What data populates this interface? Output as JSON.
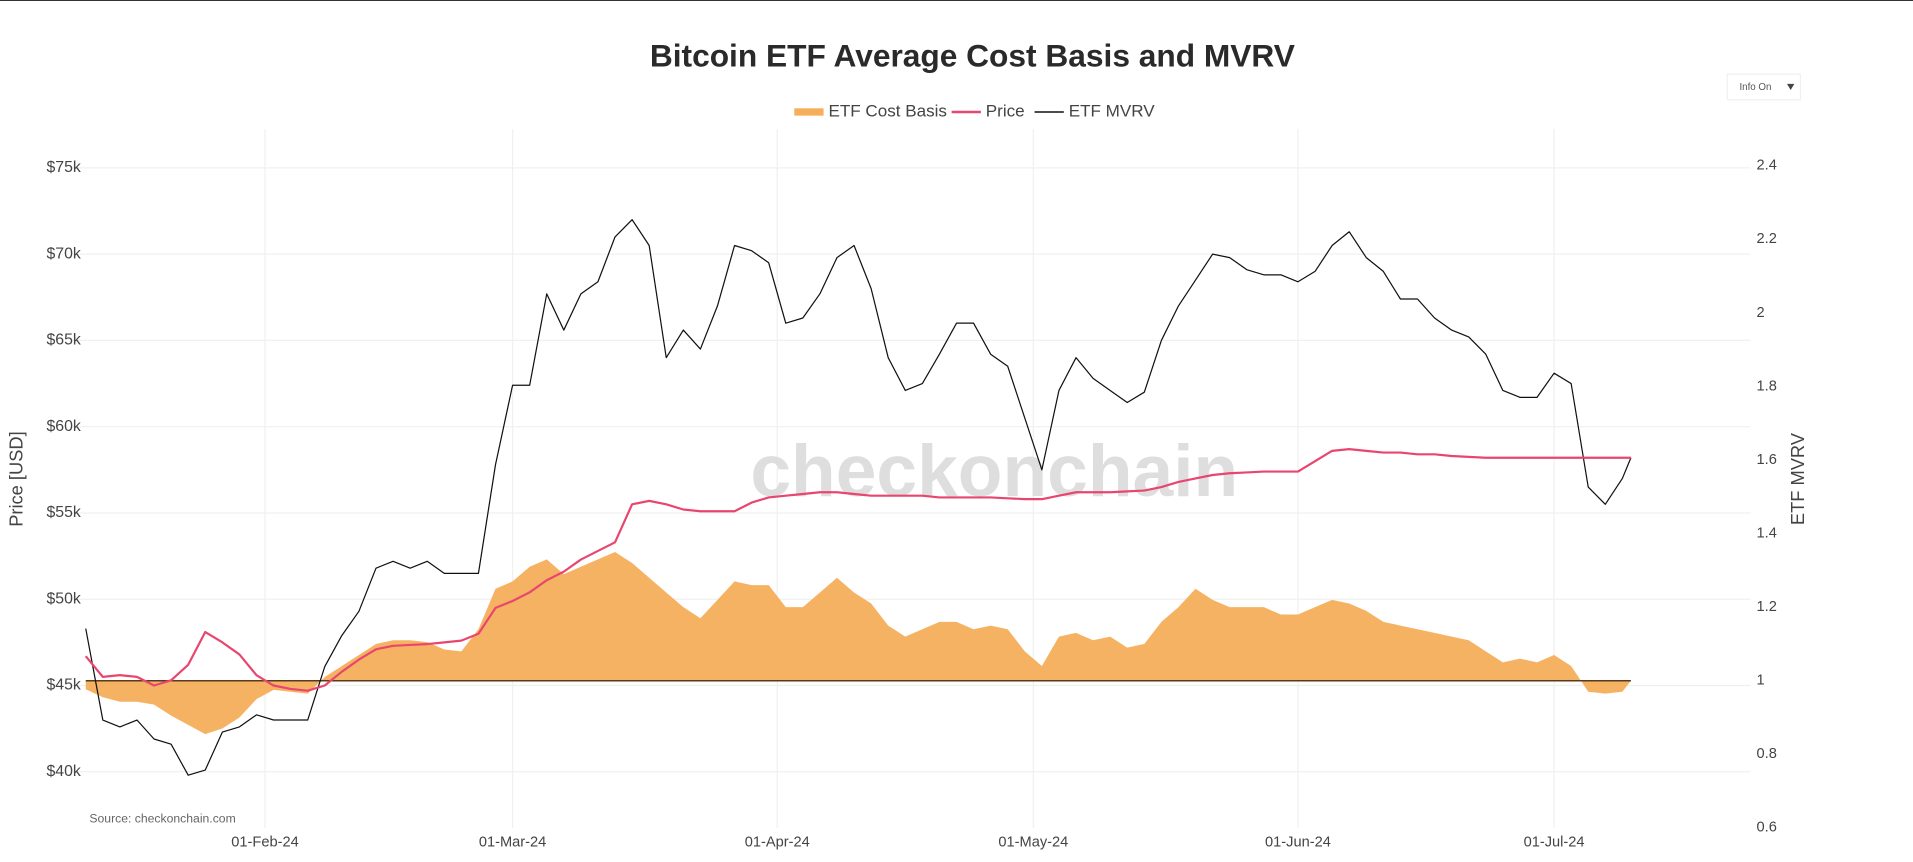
{
  "chart_data": {
    "type": "line",
    "title": "Bitcoin ETF Average Cost Basis and MVRV",
    "ylabel": "Price [USD]",
    "y2label": "ETF MVRV",
    "source": "Source: checkonchain.com",
    "watermark": "checkonchain",
    "info_button": "Info On",
    "grid": true,
    "reference_line": 1,
    "xlim": [
      "2024-01-10",
      "2024-07-23"
    ],
    "xticks": [
      {
        "value": "2024-02-01",
        "label": "01-Feb-24"
      },
      {
        "value": "2024-03-01",
        "label": "01-Mar-24"
      },
      {
        "value": "2024-04-01",
        "label": "01-Apr-24"
      },
      {
        "value": "2024-05-01",
        "label": "01-May-24"
      },
      {
        "value": "2024-06-01",
        "label": "01-Jun-24"
      },
      {
        "value": "2024-07-01",
        "label": "01-Jul-24"
      }
    ],
    "ylim": [
      36750,
      77250
    ],
    "yticks": [
      {
        "value": 40000,
        "label": "$40k"
      },
      {
        "value": 45000,
        "label": "$45k"
      },
      {
        "value": 50000,
        "label": "$50k"
      },
      {
        "value": 55000,
        "label": "$55k"
      },
      {
        "value": 60000,
        "label": "$60k"
      },
      {
        "value": 65000,
        "label": "$65k"
      },
      {
        "value": 70000,
        "label": "$70k"
      },
      {
        "value": 75000,
        "label": "$75k"
      }
    ],
    "y2lim": [
      0.6,
      2.5
    ],
    "y2ticks": [
      0.6,
      0.8,
      1,
      1.2,
      1.4,
      1.6,
      1.8,
      2,
      2.2,
      2.4
    ],
    "x": [
      "2024-01-11",
      "2024-01-13",
      "2024-01-15",
      "2024-01-17",
      "2024-01-19",
      "2024-01-21",
      "2024-01-23",
      "2024-01-25",
      "2024-01-27",
      "2024-01-29",
      "2024-01-31",
      "2024-02-02",
      "2024-02-04",
      "2024-02-06",
      "2024-02-08",
      "2024-02-10",
      "2024-02-12",
      "2024-02-14",
      "2024-02-16",
      "2024-02-18",
      "2024-02-20",
      "2024-02-22",
      "2024-02-24",
      "2024-02-26",
      "2024-02-28",
      "2024-03-01",
      "2024-03-03",
      "2024-03-05",
      "2024-03-07",
      "2024-03-09",
      "2024-03-11",
      "2024-03-13",
      "2024-03-15",
      "2024-03-17",
      "2024-03-19",
      "2024-03-21",
      "2024-03-23",
      "2024-03-25",
      "2024-03-27",
      "2024-03-29",
      "2024-03-31",
      "2024-04-02",
      "2024-04-04",
      "2024-04-06",
      "2024-04-08",
      "2024-04-10",
      "2024-04-12",
      "2024-04-14",
      "2024-04-16",
      "2024-04-18",
      "2024-04-20",
      "2024-04-22",
      "2024-04-24",
      "2024-04-26",
      "2024-04-28",
      "2024-04-30",
      "2024-05-02",
      "2024-05-04",
      "2024-05-06",
      "2024-05-08",
      "2024-05-10",
      "2024-05-12",
      "2024-05-14",
      "2024-05-16",
      "2024-05-18",
      "2024-05-20",
      "2024-05-22",
      "2024-05-24",
      "2024-05-26",
      "2024-05-28",
      "2024-05-30",
      "2024-06-01",
      "2024-06-03",
      "2024-06-05",
      "2024-06-07",
      "2024-06-09",
      "2024-06-11",
      "2024-06-13",
      "2024-06-15",
      "2024-06-17",
      "2024-06-19",
      "2024-06-21",
      "2024-06-23",
      "2024-06-25",
      "2024-06-27",
      "2024-06-29",
      "2024-07-01",
      "2024-07-03",
      "2024-07-05",
      "2024-07-07",
      "2024-07-09",
      "2024-07-10"
    ],
    "series": [
      {
        "name": "ETF Cost Basis",
        "color": "#f6ae5b",
        "axis": "y2",
        "fill": true,
        "values": [
          0.977,
          0.955,
          0.943,
          0.943,
          0.935,
          0.905,
          0.88,
          0.855,
          0.87,
          0.9,
          0.95,
          0.975,
          0.97,
          0.965,
          1.01,
          1.04,
          1.07,
          1.1,
          1.11,
          1.11,
          1.105,
          1.085,
          1.08,
          1.14,
          1.25,
          1.27,
          1.31,
          1.33,
          1.29,
          1.31,
          1.33,
          1.35,
          1.32,
          1.28,
          1.24,
          1.2,
          1.17,
          1.22,
          1.27,
          1.26,
          1.26,
          1.2,
          1.2,
          1.24,
          1.28,
          1.24,
          1.21,
          1.15,
          1.12,
          1.14,
          1.16,
          1.16,
          1.14,
          1.15,
          1.14,
          1.08,
          1.04,
          1.12,
          1.13,
          1.11,
          1.12,
          1.09,
          1.1,
          1.16,
          1.2,
          1.25,
          1.22,
          1.2,
          1.2,
          1.2,
          1.18,
          1.18,
          1.2,
          1.22,
          1.21,
          1.19,
          1.16,
          1.15,
          1.14,
          1.13,
          1.12,
          1.11,
          1.08,
          1.05,
          1.06,
          1.05,
          1.07,
          1.04,
          0.97,
          0.965,
          0.97,
          1.0
        ]
      },
      {
        "name": "Price",
        "color": "#e8466f",
        "axis": "y",
        "values": [
          46700,
          45500,
          45600,
          45500,
          45000,
          45300,
          46200,
          48100,
          47500,
          46800,
          45600,
          45000,
          44800,
          44700,
          45000,
          45800,
          46500,
          47100,
          47300,
          47350,
          47400,
          47500,
          47600,
          48000,
          49500,
          49900,
          50400,
          51100,
          51600,
          52300,
          52800,
          53300,
          55500,
          55700,
          55500,
          55200,
          55100,
          55100,
          55100,
          55600,
          55900,
          56000,
          56100,
          56200,
          56200,
          56100,
          56000,
          56000,
          56000,
          56000,
          55900,
          55900,
          55900,
          55900,
          55850,
          55800,
          55800,
          56000,
          56200,
          56200,
          56200,
          56250,
          56300,
          56500,
          56800,
          57000,
          57200,
          57300,
          57350,
          57400,
          57400,
          57400,
          58000,
          58600,
          58700,
          58600,
          58500,
          58500,
          58400,
          58400,
          58300,
          58250,
          58200,
          58200,
          58200,
          58200,
          58200,
          58200,
          58200,
          58200,
          58200,
          58200
        ]
      },
      {
        "name": "ETF MVRV",
        "color": "#111111",
        "axis": "y",
        "values": [
          48300,
          43000,
          42600,
          43000,
          41900,
          41600,
          39800,
          40100,
          42300,
          42600,
          43300,
          43000,
          43000,
          43000,
          46100,
          47900,
          49300,
          51800,
          52200,
          51800,
          52200,
          51500,
          51500,
          51500,
          57800,
          62400,
          62400,
          67700,
          65600,
          67700,
          68400,
          71000,
          72000,
          70500,
          64000,
          65600,
          64500,
          67000,
          70500,
          70200,
          69500,
          66000,
          66300,
          67700,
          69800,
          70500,
          68000,
          64000,
          62100,
          62500,
          64200,
          66000,
          66000,
          64200,
          63500,
          60500,
          57500,
          62100,
          64000,
          62800,
          62100,
          61400,
          62000,
          65000,
          67000,
          68500,
          70000,
          69800,
          69100,
          68800,
          68800,
          68400,
          69000,
          70500,
          71300,
          69800,
          69000,
          67400,
          67400,
          66300,
          65600,
          65200,
          64200,
          62100,
          61700,
          61700,
          63100,
          62500,
          56500,
          55500,
          57000,
          58200
        ]
      }
    ]
  }
}
